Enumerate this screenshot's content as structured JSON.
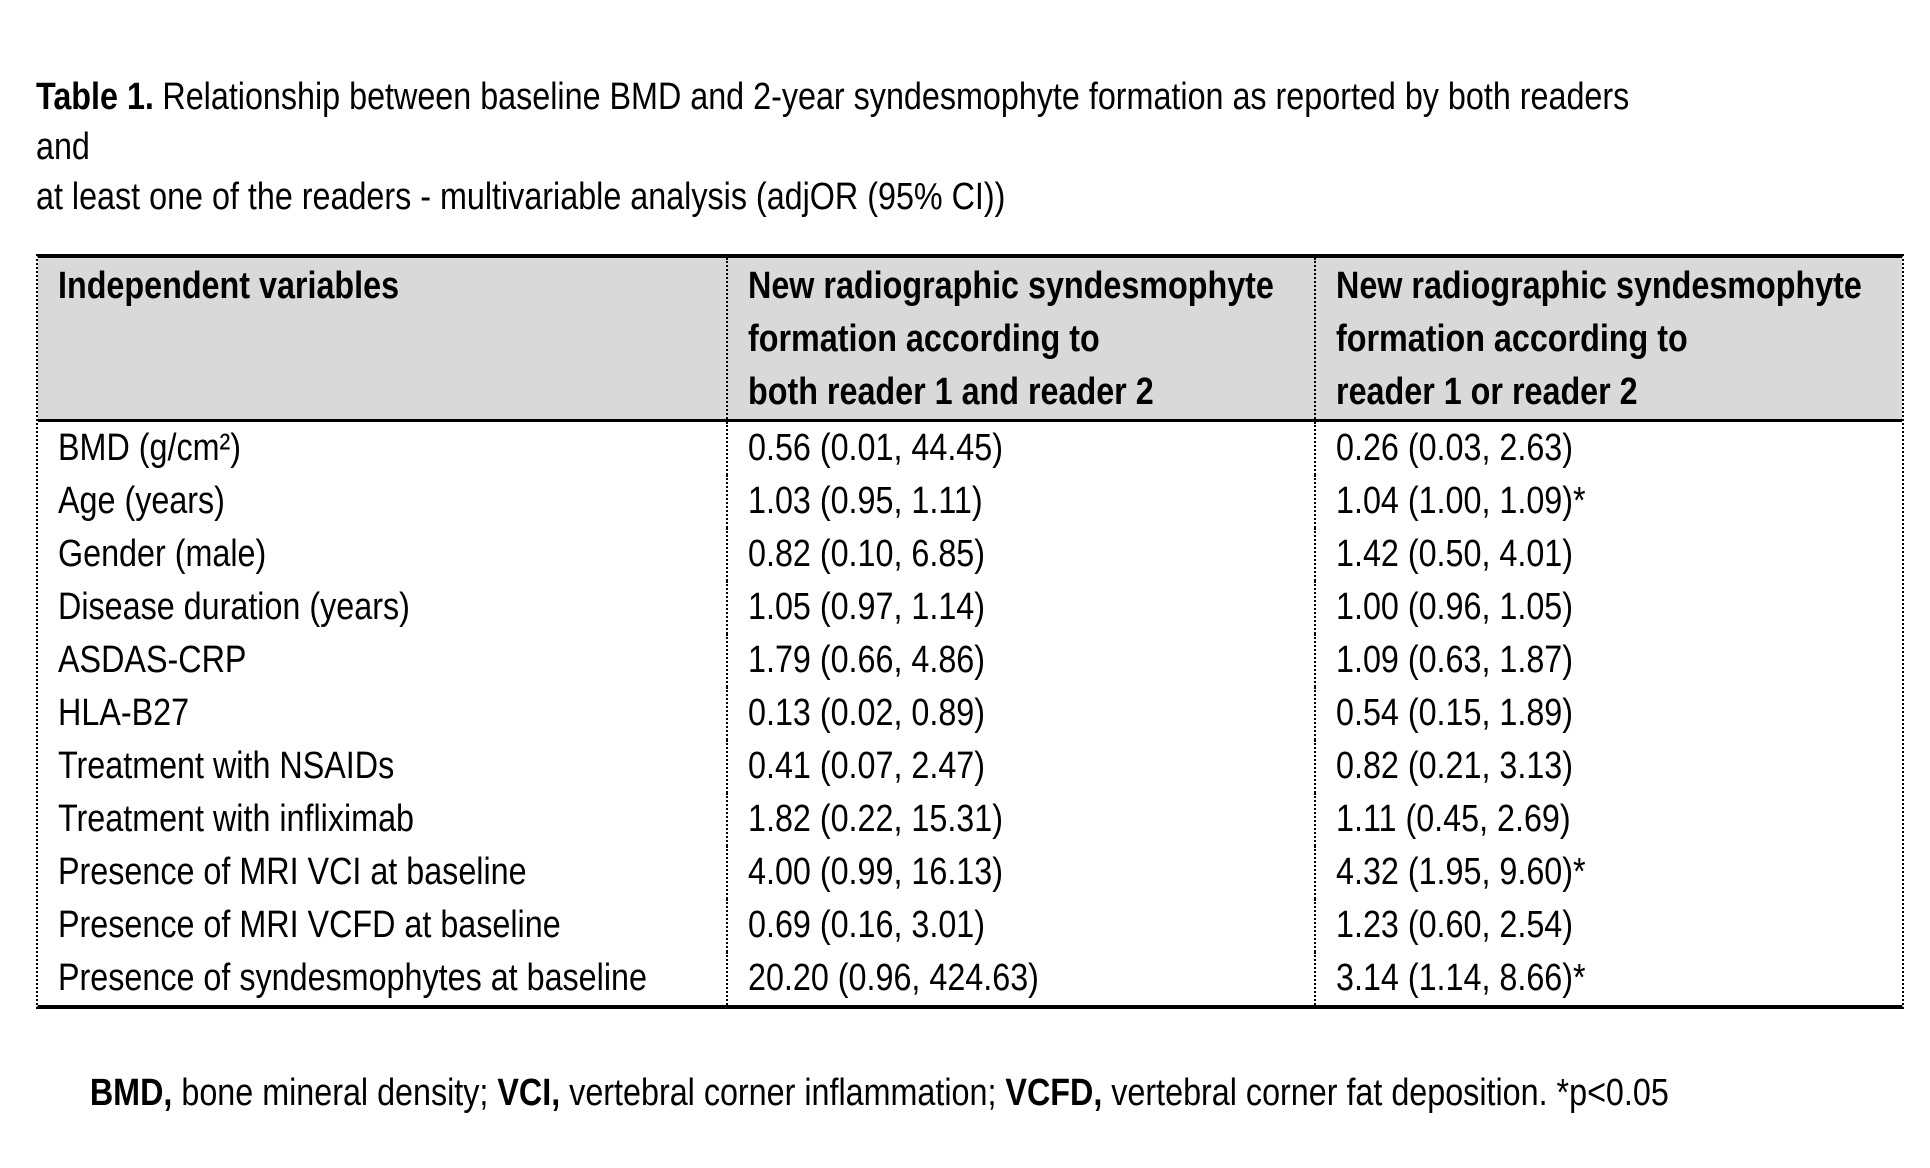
{
  "title": {
    "prefix": "Table 1.",
    "text": "Relationship between baseline BMD and 2-year syndesmophyte formation as reported by both readers and\nat least one of the readers - multivariable analysis (adjOR (95% CI))"
  },
  "table": {
    "headers": {
      "variables": "Independent variables",
      "both_readers": "New radiographic syndesmophyte\nformation according to\nboth reader 1 and reader 2",
      "either_reader": "New radiographic syndesmophyte\nformation according to\nreader 1 or reader 2"
    },
    "rows": [
      {
        "variable": "BMD (g/cm²)",
        "both": "0.56 (0.01, 44.45)",
        "either": "0.26 (0.03, 2.63)"
      },
      {
        "variable": "Age (years)",
        "both": "1.03 (0.95, 1.11)",
        "either": "1.04 (1.00, 1.09)*"
      },
      {
        "variable": "Gender (male)",
        "both": "0.82 (0.10, 6.85)",
        "either": "1.42 (0.50, 4.01)"
      },
      {
        "variable": "Disease duration (years)",
        "both": "1.05 (0.97, 1.14)",
        "either": "1.00 (0.96, 1.05)"
      },
      {
        "variable": "ASDAS-CRP",
        "both": "1.79 (0.66, 4.86)",
        "either": "1.09 (0.63, 1.87)"
      },
      {
        "variable": "HLA-B27",
        "both": "0.13 (0.02, 0.89)",
        "either": "0.54 (0.15, 1.89)"
      },
      {
        "variable": "Treatment with NSAIDs",
        "both": "0.41 (0.07, 2.47)",
        "either": "0.82 (0.21, 3.13)"
      },
      {
        "variable": "Treatment with infliximab",
        "both": "1.82 (0.22, 15.31)",
        "either": "1.11 (0.45, 2.69)"
      },
      {
        "variable": "Presence of MRI VCI at baseline",
        "both": "4.00 (0.99, 16.13)",
        "either": "4.32 (1.95, 9.60)*"
      },
      {
        "variable": "Presence of MRI VCFD at baseline",
        "both": "0.69 (0.16, 3.01)",
        "either": "1.23 (0.60, 2.54)"
      },
      {
        "variable": "Presence of syndesmophytes at baseline",
        "both": "20.20 (0.96, 424.63)",
        "either": "3.14 (1.14, 8.66)*"
      }
    ]
  },
  "footnote": {
    "abbr1": "BMD,",
    "text1": " bone mineral density; ",
    "abbr2": "VCI,",
    "text2": " vertebral corner inflammation; ",
    "abbr3": "VCFD,",
    "text3": " vertebral corner fat deposition. *p<0.05"
  },
  "colors": {
    "header_bg": "#d9d9d9",
    "text": "#000000",
    "background": "#ffffff"
  }
}
